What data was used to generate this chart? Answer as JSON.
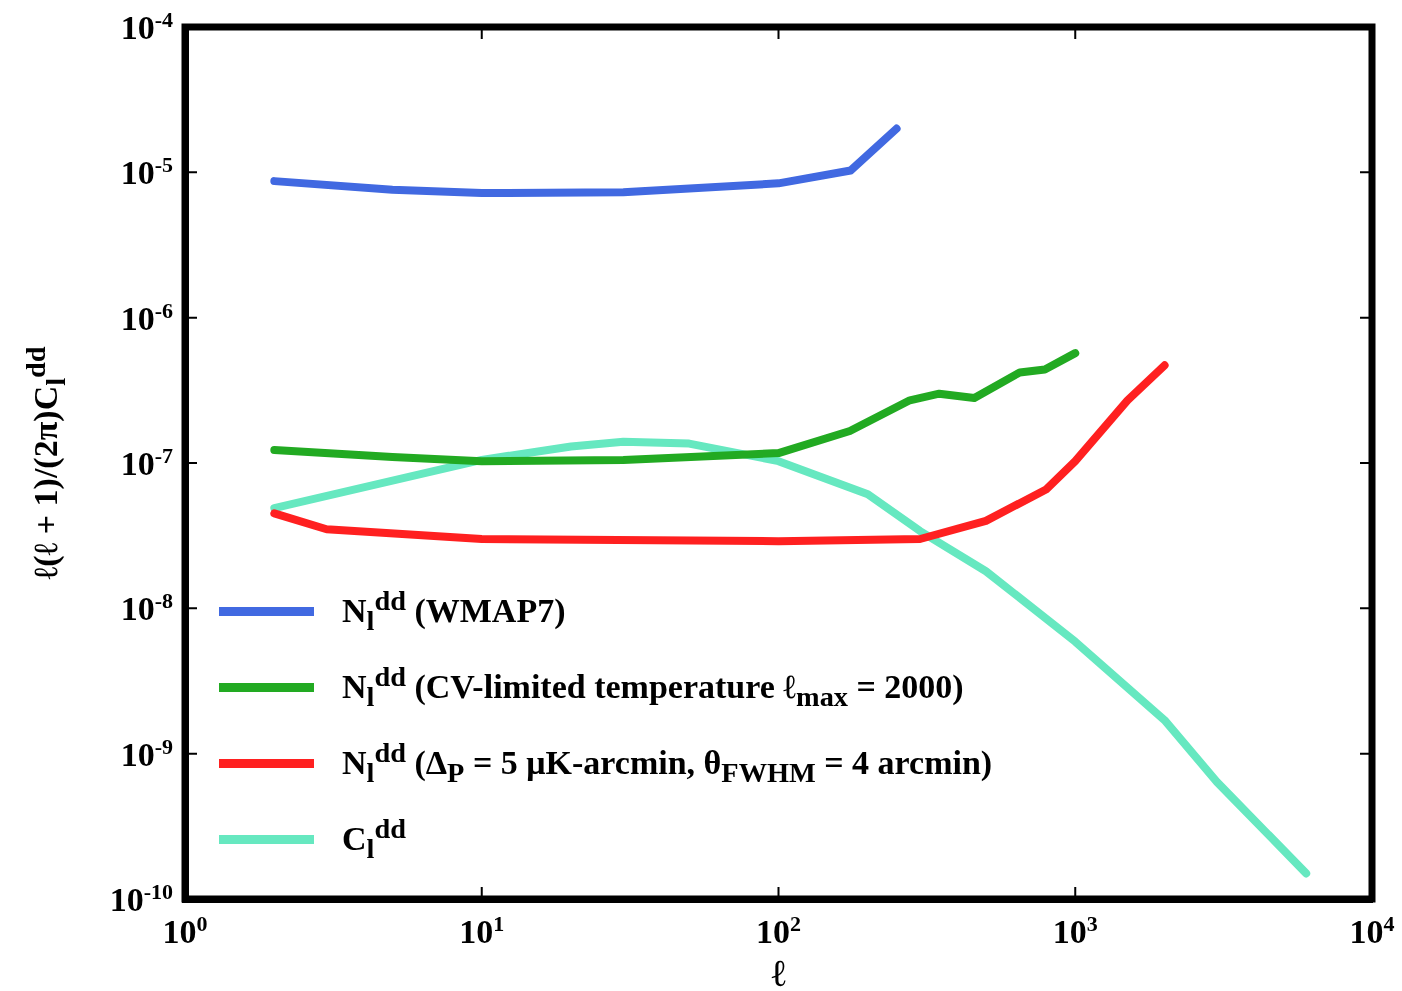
{
  "chart_data": {
    "type": "line",
    "xlabel": "ℓ",
    "ylabel": "ℓ(ℓ + 1)/(2π)C$_{l}$$^{dd}$",
    "log": "xy",
    "grid": false,
    "legend": "bottom left",
    "marker": "none",
    "line_style": "solid",
    "xlim": [
      1,
      10000
    ],
    "ylim": [
      1e-10,
      0.0001
    ],
    "xticks": [
      {
        "value": 1,
        "label": "10$^{0}$"
      },
      {
        "value": 10,
        "label": "10$^{1}$"
      },
      {
        "value": 100,
        "label": "10$^{2}$"
      },
      {
        "value": 1000,
        "label": "10$^{3}$"
      },
      {
        "value": 10000,
        "label": "10$^{4}$"
      }
    ],
    "yticks": [
      {
        "value": 1e-10,
        "label": "10$^{-10}$"
      },
      {
        "value": 1e-09,
        "label": "10$^{-9}$"
      },
      {
        "value": 1e-08,
        "label": "10$^{-8}$"
      },
      {
        "value": 1e-07,
        "label": "10$^{-7}$"
      },
      {
        "value": 1e-06,
        "label": "10$^{-6}$"
      },
      {
        "value": 1e-05,
        "label": "10$^{-5}$"
      },
      {
        "value": 0.0001,
        "label": "10$^{-4}$"
      }
    ],
    "series": [
      {
        "name": "N$_{l}$$^{dd}$ (WMAP7)",
        "color": "#4169e1",
        "x": [
          2,
          5,
          10,
          30,
          100,
          175,
          250
        ],
        "values": [
          8.7e-06,
          7.6e-06,
          7.2e-06,
          7.3e-06,
          8.4e-06,
          1.03e-05,
          2e-05
        ]
      },
      {
        "name": "N$_{l}$$^{dd}$ (CV-limited temperature ℓ$_{max}$ = 2000)",
        "color": "#22aa22",
        "x": [
          2,
          5,
          10,
          30,
          100,
          174,
          277,
          348,
          457,
          650,
          790,
          1000
        ],
        "values": [
          1.23e-07,
          1.1e-07,
          1.03e-07,
          1.05e-07,
          1.17e-07,
          1.66e-07,
          2.7e-07,
          3e-07,
          2.8e-07,
          4.2e-07,
          4.4e-07,
          5.7e-07
        ]
      },
      {
        "name": "N$_{l}$$^{dd}$ (Δ$_{P}$ = 5 μK-arcmin, θ$_{FWHM}$ = 4 arcmin)",
        "color": "#ff2020",
        "x": [
          2,
          3,
          10,
          100,
          300,
          500,
          800,
          1000,
          1500,
          2000
        ],
        "values": [
          4.5e-08,
          3.5e-08,
          3e-08,
          2.9e-08,
          3e-08,
          4e-08,
          6.6e-08,
          1.03e-07,
          2.7e-07,
          4.7e-07
        ]
      },
      {
        "name": "C$_{l}$$^{dd}$",
        "color": "#66e8c0",
        "x": [
          2,
          10,
          20,
          30,
          50,
          100,
          200,
          300,
          500,
          1000,
          2000,
          3000,
          6000
        ],
        "values": [
          4.9e-08,
          1.05e-07,
          1.3e-07,
          1.4e-07,
          1.36e-07,
          1.03e-07,
          6.1e-08,
          3.4e-08,
          1.8e-08,
          5.9e-09,
          1.7e-09,
          6.4e-10,
          1.5e-10
        ]
      }
    ]
  }
}
